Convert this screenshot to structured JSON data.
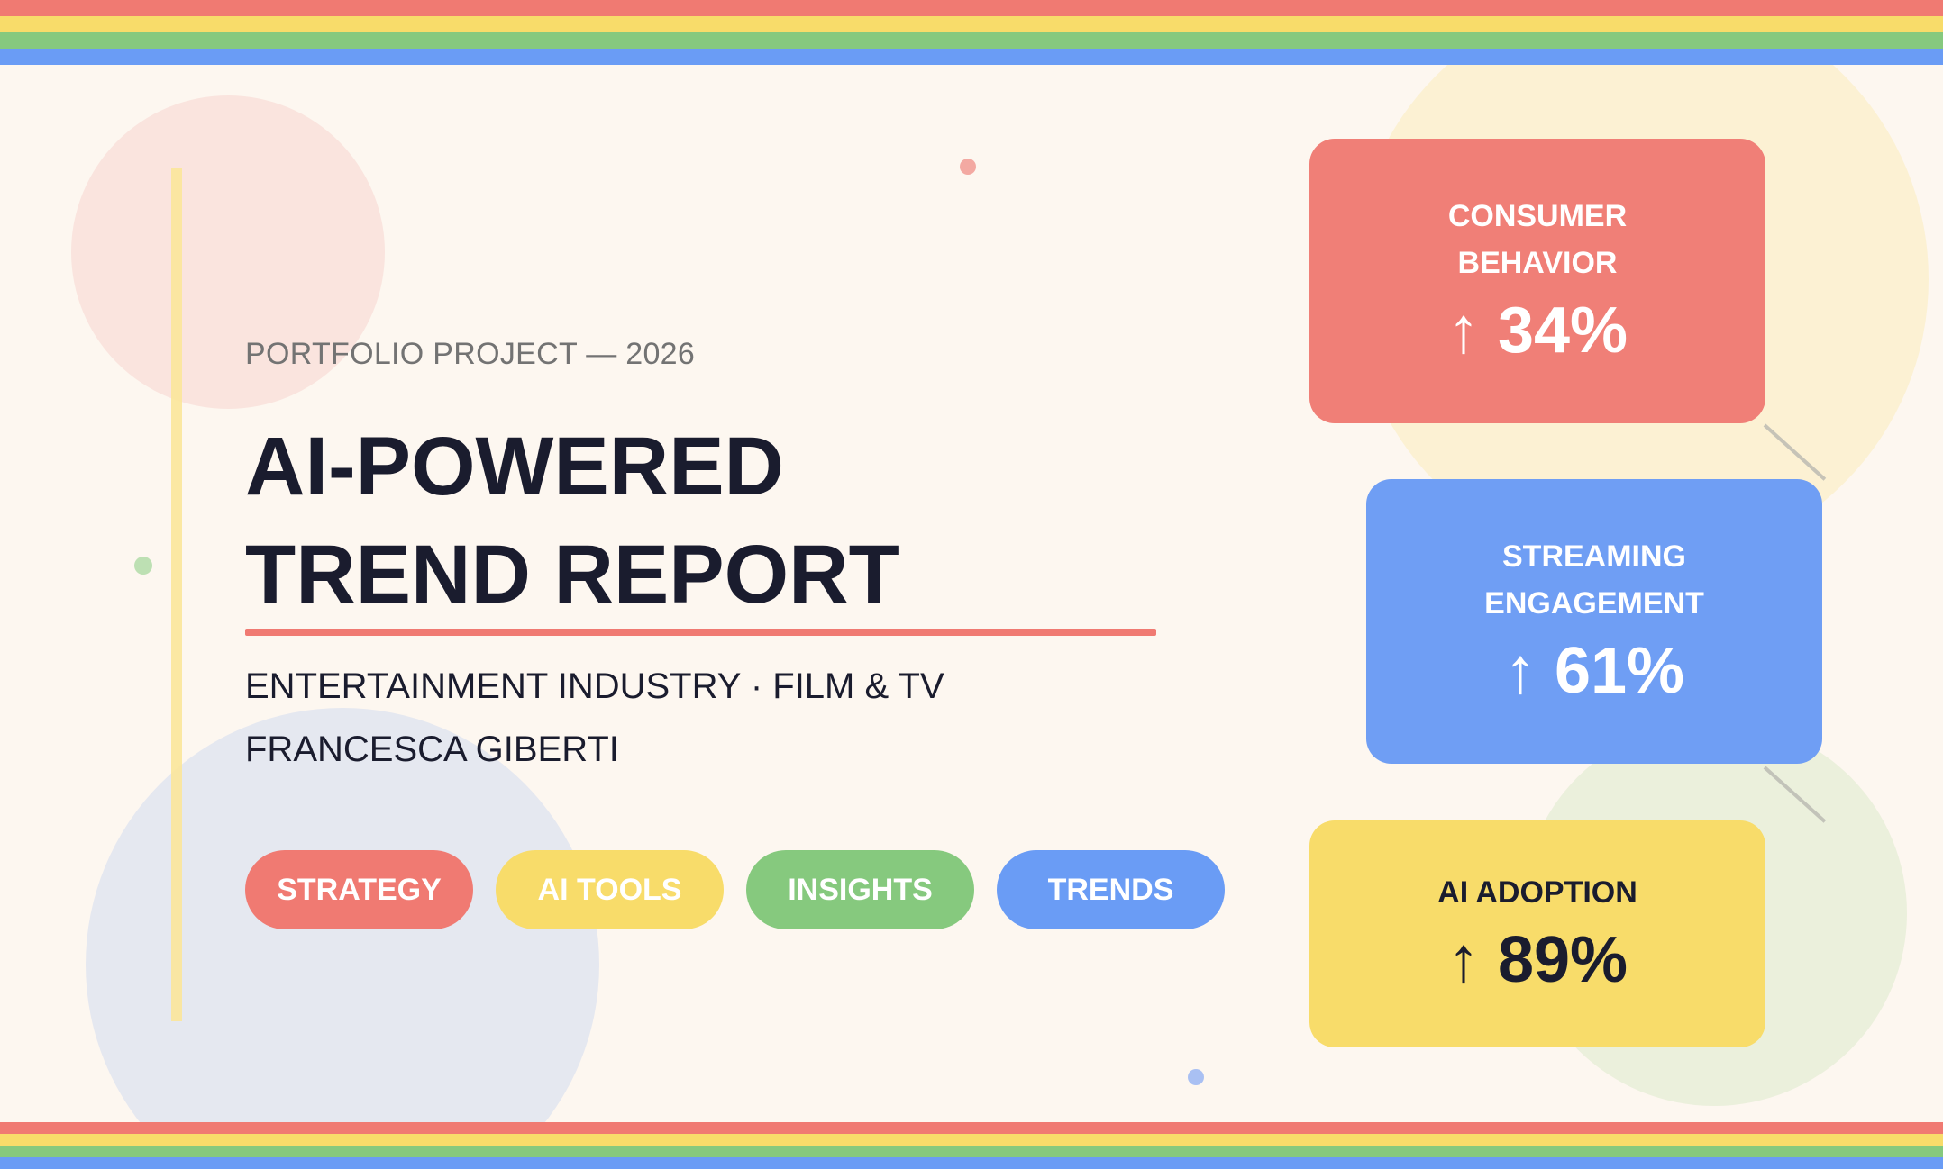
{
  "header": {
    "eyebrow": "PORTFOLIO PROJECT — 2026",
    "title_line1": "AI-POWERED",
    "title_line2": "TREND REPORT",
    "industry": "ENTERTAINMENT INDUSTRY · FILM & TV",
    "author": "FRANCESCA GIBERTI"
  },
  "tags": [
    {
      "label": "STRATEGY",
      "color": "#f07a72"
    },
    {
      "label": "AI TOOLS",
      "color": "#f8dc6a"
    },
    {
      "label": "INSIGHTS",
      "color": "#86c97e"
    },
    {
      "label": "TRENDS",
      "color": "#6a9cf5"
    }
  ],
  "stats": [
    {
      "label": "CONSUMER BEHAVIOR",
      "arrow": "↑",
      "value": "34%",
      "color": "#f07f77"
    },
    {
      "label": "STREAMING ENGAGEMENT",
      "arrow": "↑",
      "value": "61%",
      "color": "#6f9ef4"
    },
    {
      "label": "AI ADOPTION",
      "arrow": "↑",
      "value": "89%",
      "color": "#f8dc6a"
    }
  ],
  "palette": {
    "red": "#f07a72",
    "yellow": "#f8dc6a",
    "green": "#86c97e",
    "blue": "#6a9cf5",
    "background": "#fdf7f0",
    "text": "#1a1c2e"
  }
}
